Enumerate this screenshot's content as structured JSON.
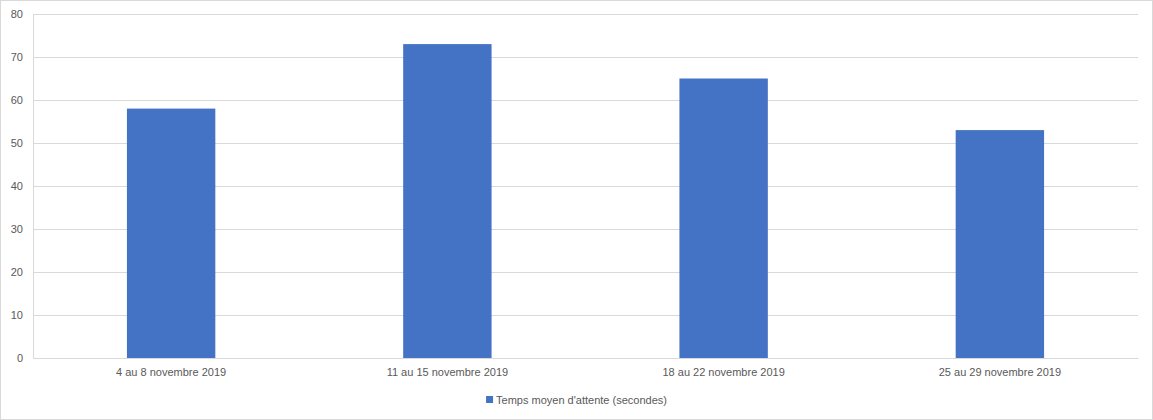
{
  "chart_data": {
    "type": "bar",
    "categories": [
      "4 au 8 novembre 2019",
      "11 au 15 novembre 2019",
      "18 au 22 novembre 2019",
      "25 au 29 novembre 2019"
    ],
    "series": [
      {
        "name": "Temps moyen d'attente (secondes)",
        "color": "#4472c4",
        "values": [
          58,
          73,
          65,
          53
        ]
      }
    ],
    "ylim": [
      0,
      80
    ],
    "yticks": [
      0,
      10,
      20,
      30,
      40,
      50,
      60,
      70,
      80
    ],
    "grid": true,
    "legend": "bottom"
  }
}
